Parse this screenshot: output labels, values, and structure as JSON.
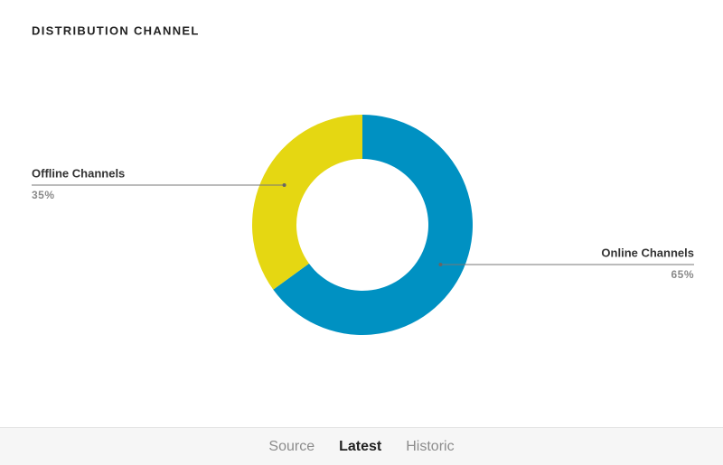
{
  "chart_data": {
    "type": "donut",
    "title": "DISTRIBUTION CHANNEL",
    "categories": [
      "Online Channels",
      "Offline Channels"
    ],
    "values": [
      65,
      35
    ],
    "value_labels": [
      "65%",
      "35%"
    ],
    "colors": [
      "#0091c2",
      "#e5d712"
    ]
  },
  "tabs": [
    "Source",
    "Latest",
    "Historic"
  ],
  "active_tab": 1
}
